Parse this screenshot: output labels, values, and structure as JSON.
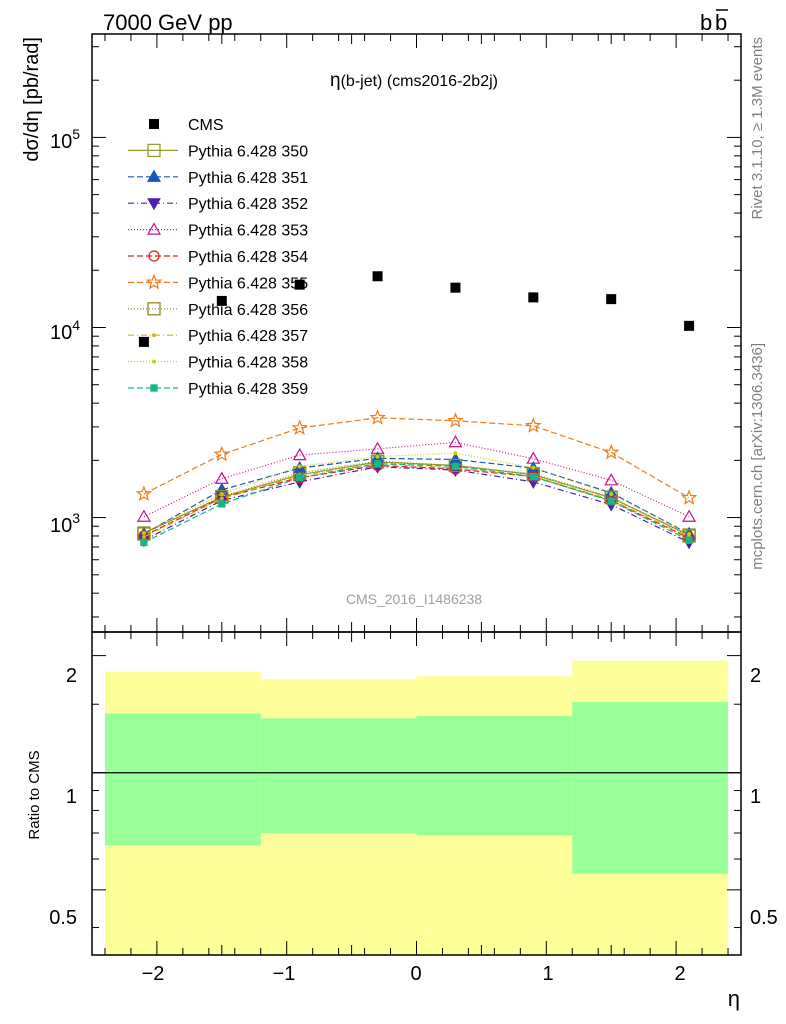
{
  "header": {
    "left": "7000 GeV pp",
    "right_b": "b",
    "right_bbar": "b"
  },
  "side_labels": {
    "rivet": "Rivet 3.1.10, ≥ 1.3M events",
    "mcplots": "mcplots.cern.ch [arXiv:1306.3436]"
  },
  "watermark": "CMS_2016_I1486238",
  "chart_data": [
    {
      "type": "scatter",
      "title_eta": "η",
      "title_rest": "(b-jet) (cms2016-2b2j)",
      "ylabel": "dσ/dη [pb/rad]",
      "yscale": "log",
      "xlim": [
        -2.5,
        2.5
      ],
      "ylim": [
        250,
        350000
      ],
      "y_tick_labels": [
        {
          "base": "10",
          "exp": "3",
          "value": 1000
        },
        {
          "base": "10",
          "exp": "4",
          "value": 10000
        },
        {
          "base": "10",
          "exp": "5",
          "value": 100000
        }
      ],
      "x": [
        -2.1,
        -1.5,
        -0.9,
        -0.3,
        0.3,
        0.9,
        1.5,
        2.1
      ],
      "cms": {
        "name": "CMS",
        "color": "#000000",
        "values": [
          8400,
          13800,
          16800,
          18600,
          16200,
          14400,
          14100,
          10200
        ]
      },
      "series": [
        {
          "name": "Pythia 6.428 350",
          "color": "#999933",
          "marker": "square-open",
          "dash": "",
          "values": [
            830,
            1280,
            1680,
            1960,
            1880,
            1680,
            1270,
            810
          ]
        },
        {
          "name": "Pythia 6.428 351",
          "color": "#1a56b8",
          "marker": "triangle-up",
          "dash": "6,3",
          "values": [
            820,
            1400,
            1820,
            2050,
            2020,
            1820,
            1350,
            820
          ]
        },
        {
          "name": "Pythia 6.428 352",
          "color": "#4b1fb0",
          "marker": "triangle-down",
          "dash": "6,3,1,3",
          "values": [
            760,
            1230,
            1540,
            1850,
            1780,
            1540,
            1170,
            740
          ]
        },
        {
          "name": "Pythia 6.428 353",
          "color": "#c0168f",
          "marker": "triangle-open",
          "dash": "1,2",
          "values": [
            1010,
            1600,
            2130,
            2300,
            2490,
            2040,
            1570,
            1010
          ]
        },
        {
          "name": "Pythia 6.428 354",
          "color": "#dd1f1f",
          "marker": "circle-open",
          "dash": "6,3",
          "values": [
            800,
            1270,
            1620,
            1880,
            1800,
            1640,
            1230,
            780
          ]
        },
        {
          "name": "Pythia 6.428 355",
          "color": "#f07b18",
          "marker": "star-open",
          "dash": "6,3",
          "values": [
            1330,
            2150,
            2960,
            3350,
            3230,
            3040,
            2200,
            1270
          ]
        },
        {
          "name": "Pythia 6.428 356",
          "color": "#8c8c1f",
          "marker": "square-open",
          "dash": "1,2",
          "values": [
            820,
            1290,
            1720,
            1980,
            1880,
            1700,
            1280,
            800
          ]
        },
        {
          "name": "Pythia 6.428 357",
          "color": "#d6b400",
          "marker": "dot",
          "dash": "6,3,1,3",
          "values": [
            790,
            1260,
            1660,
            1920,
            1820,
            1650,
            1240,
            790
          ]
        },
        {
          "name": "Pythia 6.428 358",
          "color": "#c8cf00",
          "marker": "dot",
          "dash": "1,2",
          "values": [
            830,
            1330,
            1860,
            2090,
            2180,
            1830,
            1330,
            820
          ]
        },
        {
          "name": "Pythia 6.428 359",
          "color": "#18b58a",
          "marker": "square-filled",
          "dash": "6,3",
          "values": [
            740,
            1180,
            1620,
            1920,
            1860,
            1640,
            1220,
            760
          ]
        }
      ]
    },
    {
      "type": "area",
      "ylabel": "Ratio to CMS",
      "xlabel": "η",
      "xlim": [
        -2.5,
        2.5
      ],
      "ylim": [
        0.34,
        2.3
      ],
      "x_tick_labels": [
        "−2",
        "−1",
        "0",
        "1",
        "2"
      ],
      "x_tick_values": [
        -2,
        -1,
        0,
        1,
        2
      ],
      "y_tick_labels": [
        "0.5",
        "1",
        "2"
      ],
      "y_tick_values": [
        0.5,
        1,
        2
      ],
      "bins": [
        {
          "x_lo": -2.4,
          "x_hi": -1.2,
          "yellow_lo": 0.34,
          "yellow_hi": 1.82,
          "green_lo": 0.65,
          "green_hi": 1.42
        },
        {
          "x_lo": -1.2,
          "x_hi": 0.0,
          "yellow_lo": 0.34,
          "yellow_hi": 1.74,
          "green_lo": 0.7,
          "green_hi": 1.38
        },
        {
          "x_lo": 0.0,
          "x_hi": 1.2,
          "yellow_lo": 0.34,
          "yellow_hi": 1.77,
          "green_lo": 0.69,
          "green_hi": 1.4
        },
        {
          "x_lo": 1.2,
          "x_hi": 2.4,
          "yellow_lo": 0.34,
          "yellow_hi": 1.94,
          "green_lo": 0.55,
          "green_hi": 1.52
        }
      ],
      "colors": {
        "yellow": "#ffff99",
        "green": "#99ff99"
      }
    }
  ]
}
